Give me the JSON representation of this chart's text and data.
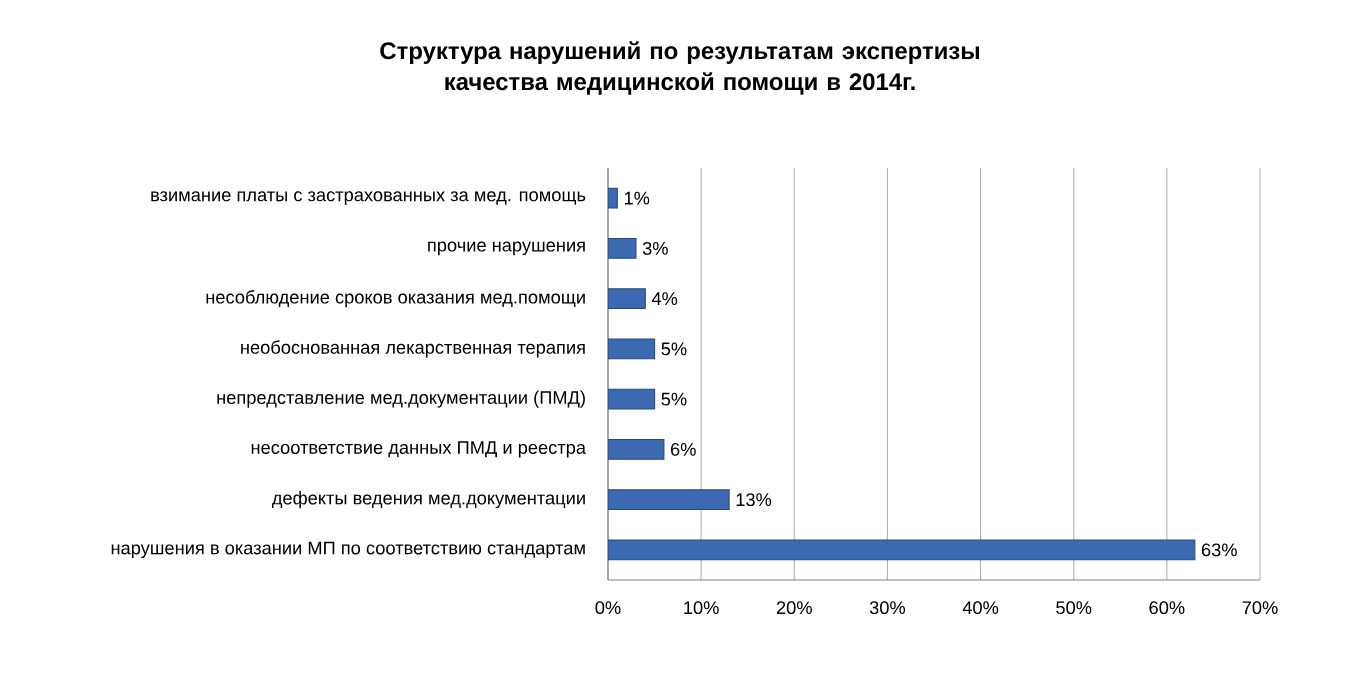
{
  "chart_data": {
    "type": "bar",
    "orientation": "horizontal",
    "title": "Структура нарушений по результатам экспертизы качества медицинской помощи в 2014г.",
    "categories": [
      "взимание платы с застрахованных за мед. помощь",
      "прочие нарушения",
      "несоблюдение сроков оказания мед.помощи",
      "необоснованная лекарственная терапия",
      "непредставление мед.документации (ПМД)",
      "несоответствие данных ПМД и реестра",
      "дефекты ведения мед.документации",
      "нарушения в оказании МП по соответствию стандартам"
    ],
    "values": [
      1,
      3,
      4,
      5,
      5,
      6,
      13,
      63
    ],
    "value_labels": [
      "1%",
      "3%",
      "4%",
      "5%",
      "5%",
      "6%",
      "13%",
      "63%"
    ],
    "color": "#3c6ab2",
    "xlim": [
      0,
      70
    ],
    "xticks": [
      {
        "value": 0,
        "label": "0%"
      },
      {
        "value": 10,
        "label": "10%"
      },
      {
        "value": 20,
        "label": "20%"
      },
      {
        "value": 30,
        "label": "30%"
      },
      {
        "value": 40,
        "label": "40%"
      },
      {
        "value": 50,
        "label": "50%"
      },
      {
        "value": 60,
        "label": "60%"
      },
      {
        "value": 70,
        "label": "70%"
      }
    ],
    "grid": "x"
  }
}
